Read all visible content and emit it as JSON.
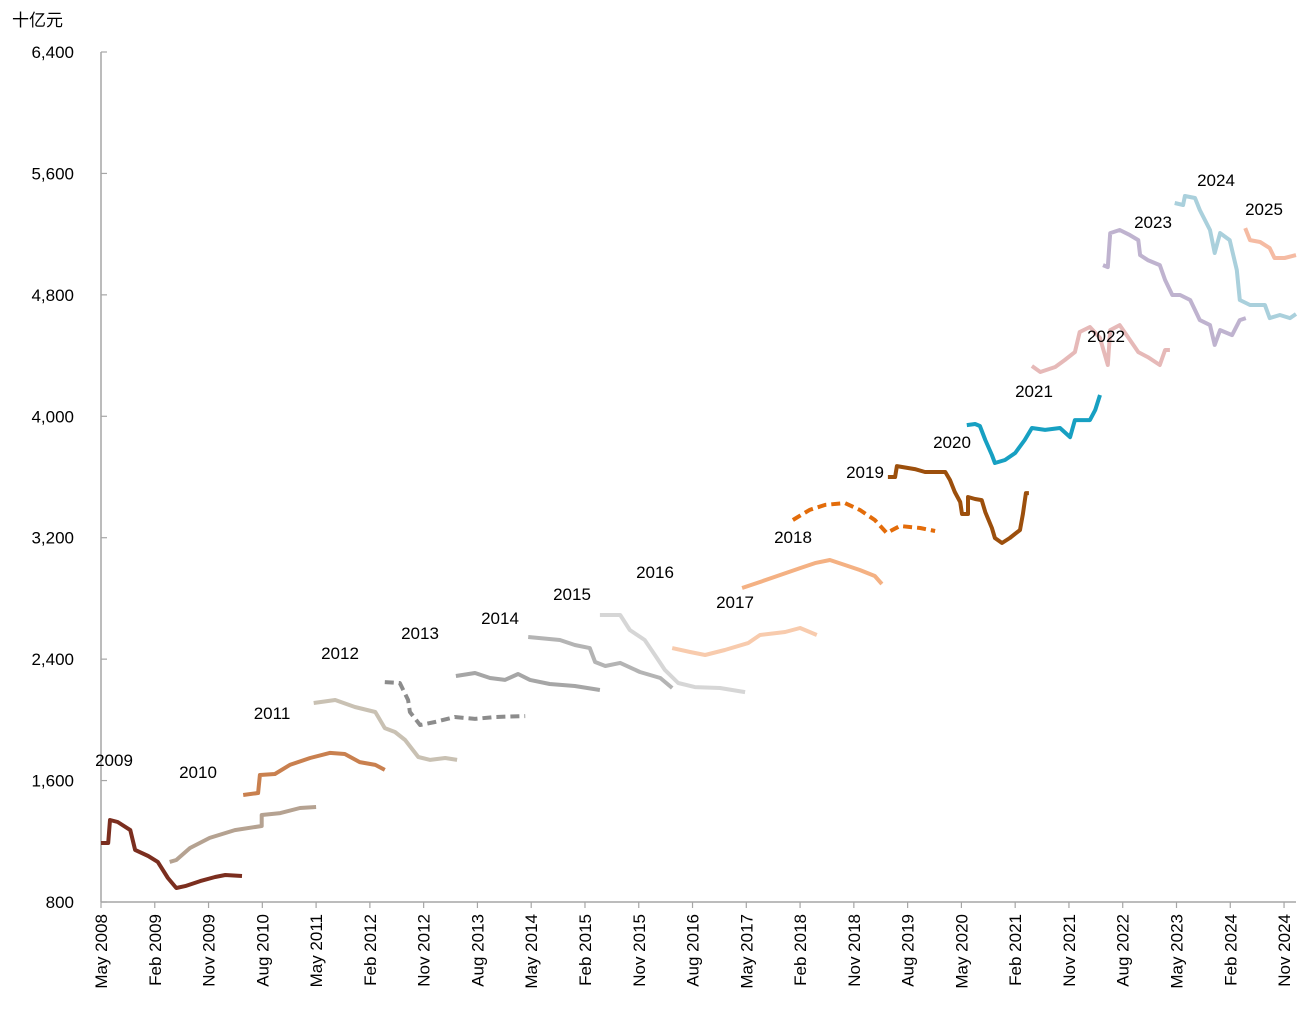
{
  "chart_data": {
    "type": "line",
    "title": "",
    "unit_label": "十亿元",
    "xlabel": "",
    "ylabel": "十亿元",
    "ylim": [
      800,
      6400
    ],
    "yticks": [
      "800",
      "1,600",
      "2,400",
      "3,200",
      "4,000",
      "4,800",
      "5,600",
      "6,400"
    ],
    "ytick_values": [
      800,
      1600,
      2400,
      3200,
      4000,
      4800,
      5600,
      6400
    ],
    "x_unit": "months since May 2008",
    "xlim": [
      0,
      200
    ],
    "xticks": [
      "May 2008",
      "Feb 2009",
      "Nov 2009",
      "Aug 2010",
      "May 2011",
      "Feb 2012",
      "Nov 2012",
      "Aug 2013",
      "May 2014",
      "Feb 2015",
      "Nov 2015",
      "Aug 2016",
      "May 2017",
      "Feb 2018",
      "Nov 2018",
      "Aug 2019",
      "May 2020",
      "Feb 2021",
      "Nov 2021",
      "Aug 2022",
      "May 2023",
      "Feb 2024",
      "Nov 2024"
    ],
    "xtick_months": [
      0,
      9,
      18,
      27,
      36,
      45,
      54,
      63,
      72,
      81,
      90,
      99,
      108,
      117,
      126,
      135,
      144,
      153,
      162,
      171,
      180,
      189,
      198
    ],
    "grid": false,
    "legend": "inline labels",
    "series": [
      {
        "name": "2009",
        "color": "#7B2E1F",
        "dashed": false,
        "points": [
          [
            0,
            1189
          ],
          [
            1.2,
            1189
          ],
          [
            1.5,
            1340
          ],
          [
            2.8,
            1327
          ],
          [
            4.9,
            1274
          ],
          [
            5.7,
            1143
          ],
          [
            7.9,
            1103
          ],
          [
            9.5,
            1064
          ],
          [
            11.2,
            958
          ],
          [
            12.6,
            892
          ],
          [
            14.1,
            905
          ],
          [
            16.6,
            938
          ],
          [
            19.1,
            965
          ],
          [
            20.8,
            978
          ],
          [
            23.6,
            971
          ]
        ]
      },
      {
        "name": "2010",
        "color": "#B5A291",
        "dashed": false,
        "points": [
          [
            11.5,
            1064
          ],
          [
            12.6,
            1077
          ],
          [
            14.9,
            1156
          ],
          [
            18.2,
            1222
          ],
          [
            22.4,
            1274
          ],
          [
            26.9,
            1301
          ],
          [
            26.9,
            1373
          ],
          [
            30,
            1386
          ],
          [
            33.3,
            1419
          ],
          [
            36,
            1426
          ]
        ]
      },
      {
        "name": "2011",
        "color": "#C9804F",
        "dashed": false,
        "points": [
          [
            23.8,
            1505
          ],
          [
            26.3,
            1518
          ],
          [
            26.6,
            1637
          ],
          [
            29.1,
            1643
          ],
          [
            31.6,
            1703
          ],
          [
            35,
            1749
          ],
          [
            38.3,
            1782
          ],
          [
            40.8,
            1775
          ],
          [
            43.3,
            1722
          ],
          [
            45.9,
            1703
          ],
          [
            47.5,
            1670
          ]
        ]
      },
      {
        "name": "2012",
        "color": "#C9C1B3",
        "dashed": false,
        "points": [
          [
            35.6,
            2111
          ],
          [
            39.2,
            2131
          ],
          [
            42.5,
            2085
          ],
          [
            45.9,
            2052
          ],
          [
            47.5,
            1946
          ],
          [
            49.2,
            1920
          ],
          [
            50.9,
            1867
          ],
          [
            53.1,
            1755
          ],
          [
            55.1,
            1736
          ],
          [
            57.6,
            1749
          ],
          [
            59.6,
            1736
          ]
        ]
      },
      {
        "name": "2013",
        "color": "#8C8C8C",
        "dashed": true,
        "points": [
          [
            47.5,
            2249
          ],
          [
            50,
            2243
          ],
          [
            51.4,
            2131
          ],
          [
            51.7,
            2052
          ],
          [
            53.4,
            1966
          ],
          [
            55.9,
            1986
          ],
          [
            59.2,
            2019
          ],
          [
            62.6,
            2006
          ],
          [
            65.9,
            2019
          ],
          [
            71,
            2025
          ]
        ]
      },
      {
        "name": "2014",
        "color": "#A6A6A6",
        "dashed": false,
        "points": [
          [
            59.4,
            2289
          ],
          [
            62.6,
            2309
          ],
          [
            65.1,
            2276
          ],
          [
            67.6,
            2263
          ],
          [
            69.8,
            2302
          ],
          [
            71.8,
            2263
          ],
          [
            75.1,
            2236
          ],
          [
            79.3,
            2223
          ],
          [
            83.5,
            2197
          ]
        ]
      },
      {
        "name": "2015",
        "color": "#B4B4B4",
        "dashed": false,
        "points": [
          [
            71.5,
            2546
          ],
          [
            76.8,
            2526
          ],
          [
            79.3,
            2493
          ],
          [
            81.8,
            2473
          ],
          [
            82.7,
            2381
          ],
          [
            84.4,
            2355
          ],
          [
            86.9,
            2375
          ],
          [
            90.2,
            2315
          ],
          [
            93.6,
            2276
          ],
          [
            95.6,
            2210
          ]
        ]
      },
      {
        "name": "2016",
        "color": "#D6D6D6",
        "dashed": false,
        "points": [
          [
            83.5,
            2691
          ],
          [
            86.9,
            2691
          ],
          [
            88.5,
            2592
          ],
          [
            91,
            2526
          ],
          [
            92.7,
            2427
          ],
          [
            94.4,
            2328
          ],
          [
            96.6,
            2243
          ],
          [
            99.4,
            2216
          ],
          [
            103.6,
            2210
          ],
          [
            107.8,
            2183
          ]
        ]
      },
      {
        "name": "2017",
        "color": "#F8CBAD",
        "dashed": false,
        "points": [
          [
            95.6,
            2473
          ],
          [
            98.6,
            2447
          ],
          [
            101.1,
            2427
          ],
          [
            104.4,
            2460
          ],
          [
            108.3,
            2506
          ],
          [
            110.3,
            2559
          ],
          [
            114.5,
            2579
          ],
          [
            117,
            2605
          ],
          [
            119.8,
            2559
          ]
        ]
      },
      {
        "name": "2018",
        "color": "#F4B183",
        "dashed": false,
        "points": [
          [
            107.3,
            2869
          ],
          [
            110.3,
            2908
          ],
          [
            113.6,
            2954
          ],
          [
            117,
            3000
          ],
          [
            119.5,
            3033
          ],
          [
            122,
            3053
          ],
          [
            124.5,
            3020
          ],
          [
            127,
            2987
          ],
          [
            129.5,
            2948
          ],
          [
            130.7,
            2895
          ]
        ]
      },
      {
        "name": "2019",
        "color": "#E36C0A",
        "dashed": true,
        "points": [
          [
            115.8,
            3317
          ],
          [
            118.6,
            3383
          ],
          [
            121.2,
            3416
          ],
          [
            124.5,
            3429
          ],
          [
            127,
            3383
          ],
          [
            129.5,
            3317
          ],
          [
            131.5,
            3231
          ],
          [
            133.7,
            3277
          ],
          [
            137.1,
            3264
          ],
          [
            139.6,
            3244
          ]
        ]
      },
      {
        "name": "2020",
        "color": "#9C4F0C",
        "dashed": false,
        "points": [
          [
            131.7,
            3600
          ],
          [
            132.9,
            3600
          ],
          [
            133.2,
            3672
          ],
          [
            136.2,
            3652
          ],
          [
            137.9,
            3633
          ],
          [
            141.3,
            3633
          ],
          [
            142.1,
            3580
          ],
          [
            142.9,
            3501
          ],
          [
            143.8,
            3435
          ],
          [
            144.1,
            3356
          ],
          [
            145.1,
            3356
          ],
          [
            145.1,
            3468
          ],
          [
            146.3,
            3455
          ],
          [
            147.4,
            3448
          ],
          [
            148,
            3369
          ],
          [
            149.1,
            3264
          ],
          [
            149.6,
            3198
          ],
          [
            150.8,
            3165
          ],
          [
            152.1,
            3198
          ],
          [
            153.8,
            3251
          ],
          [
            154.3,
            3356
          ],
          [
            154.8,
            3494
          ],
          [
            155.3,
            3494
          ]
        ]
      },
      {
        "name": "2021",
        "color": "#17A0C2",
        "dashed": false,
        "points": [
          [
            144.9,
            3942
          ],
          [
            146.3,
            3949
          ],
          [
            147.1,
            3936
          ],
          [
            148,
            3844
          ],
          [
            149.1,
            3745
          ],
          [
            149.6,
            3692
          ],
          [
            151.3,
            3712
          ],
          [
            153,
            3758
          ],
          [
            154.6,
            3844
          ],
          [
            155.8,
            3923
          ],
          [
            158,
            3910
          ],
          [
            160.5,
            3923
          ],
          [
            162.2,
            3863
          ],
          [
            163,
            3975
          ],
          [
            165.5,
            3975
          ],
          [
            166.4,
            4041
          ],
          [
            167.2,
            4140
          ]
        ]
      },
      {
        "name": "2022",
        "color": "#E6B9B8",
        "dashed": false,
        "points": [
          [
            155.8,
            4331
          ],
          [
            157.2,
            4292
          ],
          [
            159.7,
            4325
          ],
          [
            161.3,
            4371
          ],
          [
            163,
            4423
          ],
          [
            163.8,
            4555
          ],
          [
            165.5,
            4588
          ],
          [
            167.2,
            4516
          ],
          [
            168.5,
            4338
          ],
          [
            168.9,
            4568
          ],
          [
            170.5,
            4601
          ],
          [
            172.2,
            4503
          ],
          [
            173.6,
            4423
          ],
          [
            175.2,
            4390
          ],
          [
            177.2,
            4338
          ],
          [
            178.1,
            4437
          ],
          [
            178.9,
            4437
          ]
        ]
      },
      {
        "name": "2023",
        "color": "#BFB3CF",
        "dashed": false,
        "points": [
          [
            167.7,
            4996
          ],
          [
            168.5,
            4983
          ],
          [
            168.9,
            5207
          ],
          [
            170.5,
            5227
          ],
          [
            172.2,
            5194
          ],
          [
            173.6,
            5161
          ],
          [
            173.9,
            5062
          ],
          [
            175.2,
            5029
          ],
          [
            177.2,
            4996
          ],
          [
            178.1,
            4898
          ],
          [
            179.3,
            4799
          ],
          [
            180.6,
            4799
          ],
          [
            182.3,
            4766
          ],
          [
            183.1,
            4700
          ],
          [
            183.9,
            4634
          ],
          [
            185.6,
            4601
          ],
          [
            186.4,
            4470
          ],
          [
            187.3,
            4568
          ],
          [
            189.3,
            4535
          ],
          [
            190.6,
            4634
          ],
          [
            191.6,
            4647
          ]
        ]
      },
      {
        "name": "2024",
        "color": "#AAD0DC",
        "dashed": false,
        "points": [
          [
            179.7,
            5405
          ],
          [
            181.1,
            5392
          ],
          [
            181.4,
            5451
          ],
          [
            183.1,
            5438
          ],
          [
            183.9,
            5359
          ],
          [
            185.6,
            5227
          ],
          [
            186.4,
            5076
          ],
          [
            187.3,
            5207
          ],
          [
            188.9,
            5161
          ],
          [
            190.1,
            4964
          ],
          [
            190.6,
            4766
          ],
          [
            192.3,
            4733
          ],
          [
            194.8,
            4733
          ],
          [
            195.6,
            4647
          ],
          [
            197.3,
            4667
          ],
          [
            199,
            4647
          ],
          [
            200,
            4674
          ]
        ]
      },
      {
        "name": "2025",
        "color": "#F5BBA3",
        "dashed": false,
        "points": [
          [
            191.5,
            5240
          ],
          [
            192.3,
            5161
          ],
          [
            194,
            5148
          ],
          [
            195.6,
            5108
          ],
          [
            196.4,
            5043
          ],
          [
            198.1,
            5043
          ],
          [
            200,
            5062
          ]
        ]
      }
    ]
  }
}
